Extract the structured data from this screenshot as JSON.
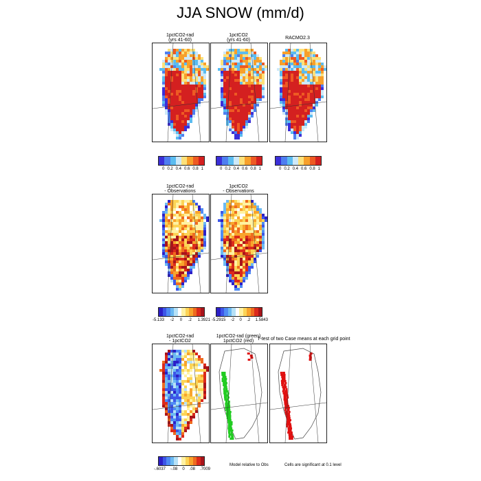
{
  "title": "JJA SNOW (mm/d)",
  "row1": {
    "panels": [
      {
        "title1": "1pctCO2-rad",
        "title2": "(yrs 41-60)"
      },
      {
        "title1": "1pctCO2",
        "title2": "(yrs 41-60)"
      },
      {
        "title1": "RACMO2.3",
        "title2": ""
      }
    ],
    "colorbar_ticks": [
      "0",
      "0.2",
      "0.4",
      "0.6",
      "0.8",
      "1"
    ],
    "colors": [
      "#3b2fd8",
      "#4e7ef0",
      "#5bbcf0",
      "#cde9f9",
      "#fde17a",
      "#f7a02b",
      "#ee5a23",
      "#d42020"
    ]
  },
  "row2": {
    "panels": [
      {
        "title1": "1pctCO2-rad",
        "title2": "- Observations"
      },
      {
        "title1": "1pctCO2",
        "title2": "- Observations"
      }
    ],
    "colorbars": [
      {
        "min": "-5.133",
        "ticks": [
          "-2",
          "0",
          ".2"
        ],
        "max": "1.3921"
      },
      {
        "min": "-5.2915",
        "ticks": [
          "-2",
          "0",
          ".2"
        ],
        "max": "1.5843"
      }
    ],
    "colors": [
      "#2c1fc7",
      "#3d56e8",
      "#4f8cf4",
      "#6cbaf2",
      "#b6e1f7",
      "#ffffff",
      "#fff2a2",
      "#fcd456",
      "#f8a42c",
      "#ef6b1f",
      "#dc2a1b",
      "#a8141b"
    ]
  },
  "row3": {
    "panels": [
      {
        "title1": "1pctCO2-rad",
        "title2": "- 1pctCO2"
      },
      {
        "title1": "1pctCO2-rad (green)",
        "title2": "1pctCO2 (red)"
      }
    ],
    "ttest_title": "T-test of two Case means at each grid point",
    "colorbar": {
      "min": "-.6037",
      "ticks": [
        "-.08",
        "0",
        ".08"
      ],
      "max": ".7009"
    },
    "colors": [
      "#2c1fc7",
      "#3d56e8",
      "#4f8cf4",
      "#6cbaf2",
      "#b6e1f7",
      "#ffffff",
      "#fff2a2",
      "#fcd456",
      "#f8a42c",
      "#ef6b1f",
      "#dc2a1b",
      "#a8141b"
    ],
    "note_model": "Model relative to Obs",
    "note_cells": "Cells are significant at 0.1 level"
  },
  "signif_colors": {
    "green": "#22cc22",
    "red": "#e01010"
  }
}
